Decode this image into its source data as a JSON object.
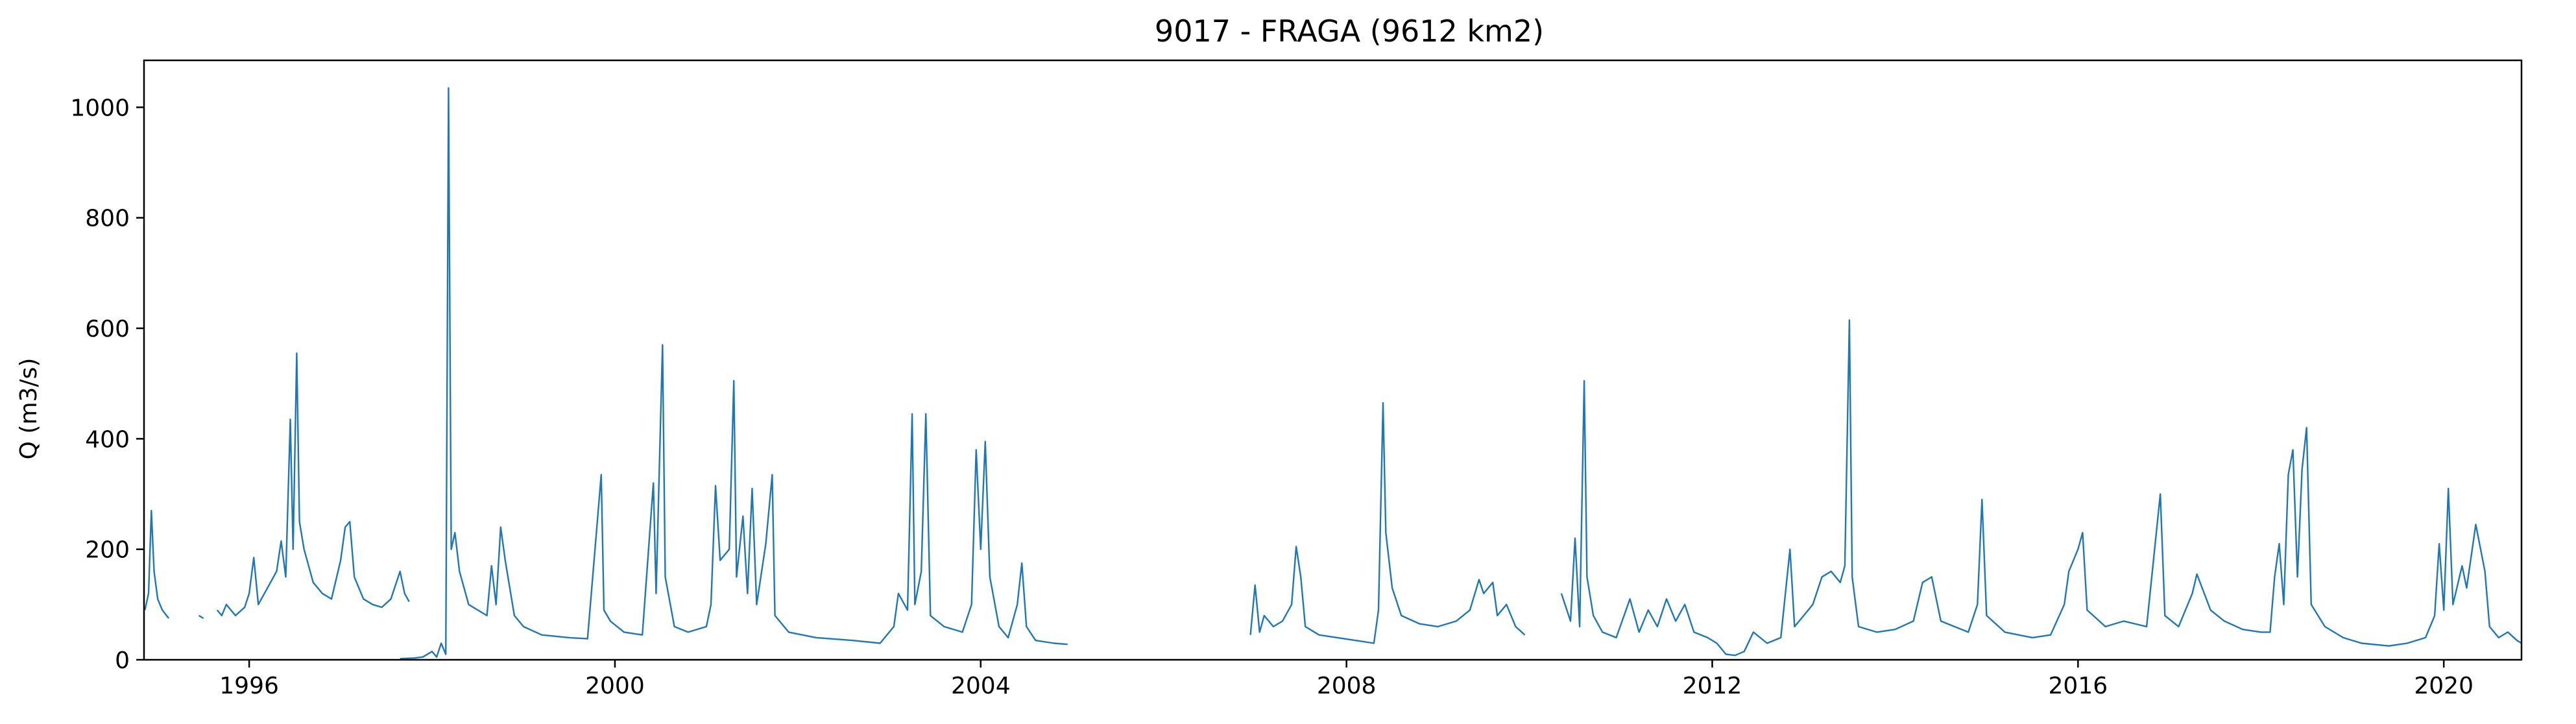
{
  "chart_data": {
    "type": "line",
    "title": "9017 - FRAGA (9612 km2)",
    "xlabel": "",
    "ylabel": "Q (m3/s)",
    "xlim": [
      1994.85,
      2020.85
    ],
    "ylim": [
      0,
      1085
    ],
    "x_ticks": [
      1996,
      2000,
      2004,
      2008,
      2012,
      2016,
      2020
    ],
    "x_tick_labels": [
      "1996",
      "2000",
      "2004",
      "2008",
      "2012",
      "2016",
      "2020"
    ],
    "y_ticks": [
      0,
      200,
      400,
      600,
      800,
      1000
    ],
    "y_tick_labels": [
      "0",
      "200",
      "400",
      "600",
      "800",
      "1000"
    ],
    "grid": false,
    "legend": "none",
    "colors": {
      "series": "#1f77b4",
      "axes": "#000000"
    },
    "series": [
      {
        "segments": [
          [
            [
              1994.86,
              90
            ],
            [
              1994.9,
              120
            ],
            [
              1994.93,
              270
            ],
            [
              1994.96,
              160
            ],
            [
              1995.0,
              110
            ],
            [
              1995.05,
              90
            ],
            [
              1995.12,
              75
            ]
          ],
          [
            [
              1995.45,
              80
            ],
            [
              1995.5,
              75
            ]
          ],
          [
            [
              1995.65,
              90
            ],
            [
              1995.7,
              80
            ],
            [
              1995.75,
              100
            ],
            [
              1995.85,
              80
            ],
            [
              1995.95,
              95
            ],
            [
              1996.0,
              120
            ],
            [
              1996.05,
              185
            ],
            [
              1996.1,
              100
            ],
            [
              1996.2,
              130
            ],
            [
              1996.3,
              160
            ],
            [
              1996.35,
              215
            ],
            [
              1996.4,
              150
            ],
            [
              1996.45,
              435
            ],
            [
              1996.48,
              200
            ],
            [
              1996.52,
              555
            ],
            [
              1996.55,
              250
            ],
            [
              1996.6,
              200
            ],
            [
              1996.7,
              140
            ],
            [
              1996.8,
              120
            ],
            [
              1996.9,
              110
            ],
            [
              1997.0,
              180
            ],
            [
              1997.05,
              240
            ],
            [
              1997.1,
              250
            ],
            [
              1997.15,
              150
            ],
            [
              1997.25,
              110
            ],
            [
              1997.35,
              100
            ],
            [
              1997.45,
              95
            ],
            [
              1997.55,
              110
            ],
            [
              1997.65,
              160
            ],
            [
              1997.7,
              120
            ],
            [
              1997.75,
              105
            ]
          ],
          [
            [
              1997.65,
              2
            ],
            [
              1997.8,
              3
            ],
            [
              1997.9,
              5
            ],
            [
              1998.0,
              15
            ],
            [
              1998.05,
              5
            ],
            [
              1998.1,
              30
            ],
            [
              1998.15,
              10
            ],
            [
              1998.18,
              1035
            ],
            [
              1998.21,
              200
            ],
            [
              1998.25,
              230
            ],
            [
              1998.3,
              160
            ],
            [
              1998.35,
              130
            ],
            [
              1998.4,
              100
            ],
            [
              1998.5,
              90
            ],
            [
              1998.6,
              80
            ],
            [
              1998.65,
              170
            ],
            [
              1998.7,
              100
            ],
            [
              1998.75,
              240
            ],
            [
              1998.8,
              180
            ],
            [
              1998.9,
              80
            ],
            [
              1999.0,
              60
            ],
            [
              1999.2,
              45
            ],
            [
              1999.5,
              40
            ],
            [
              1999.7,
              38
            ],
            [
              1999.85,
              335
            ],
            [
              1999.88,
              90
            ],
            [
              1999.95,
              70
            ],
            [
              2000.1,
              50
            ],
            [
              2000.3,
              45
            ],
            [
              2000.42,
              320
            ],
            [
              2000.45,
              120
            ],
            [
              2000.52,
              570
            ],
            [
              2000.55,
              150
            ],
            [
              2000.65,
              60
            ],
            [
              2000.8,
              50
            ],
            [
              2001.0,
              60
            ],
            [
              2001.05,
              100
            ],
            [
              2001.1,
              315
            ],
            [
              2001.15,
              180
            ],
            [
              2001.25,
              200
            ],
            [
              2001.3,
              505
            ],
            [
              2001.33,
              150
            ],
            [
              2001.4,
              260
            ],
            [
              2001.45,
              120
            ],
            [
              2001.5,
              310
            ],
            [
              2001.55,
              100
            ],
            [
              2001.65,
              210
            ],
            [
              2001.72,
              335
            ],
            [
              2001.75,
              80
            ],
            [
              2001.9,
              50
            ],
            [
              2002.2,
              40
            ],
            [
              2002.6,
              35
            ],
            [
              2002.9,
              30
            ],
            [
              2003.05,
              60
            ],
            [
              2003.1,
              120
            ],
            [
              2003.2,
              90
            ],
            [
              2003.25,
              445
            ],
            [
              2003.28,
              100
            ],
            [
              2003.35,
              160
            ],
            [
              2003.4,
              445
            ],
            [
              2003.45,
              80
            ],
            [
              2003.6,
              60
            ],
            [
              2003.8,
              50
            ],
            [
              2003.9,
              100
            ],
            [
              2003.95,
              380
            ],
            [
              2004.0,
              200
            ],
            [
              2004.05,
              395
            ],
            [
              2004.1,
              150
            ],
            [
              2004.2,
              60
            ],
            [
              2004.3,
              40
            ],
            [
              2004.4,
              100
            ],
            [
              2004.45,
              175
            ],
            [
              2004.5,
              60
            ],
            [
              2004.6,
              35
            ],
            [
              2004.8,
              30
            ],
            [
              2004.95,
              28
            ]
          ],
          [
            [
              2006.95,
              45
            ],
            [
              2007.0,
              135
            ],
            [
              2007.05,
              50
            ],
            [
              2007.1,
              80
            ],
            [
              2007.2,
              60
            ],
            [
              2007.3,
              70
            ],
            [
              2007.4,
              100
            ],
            [
              2007.45,
              205
            ],
            [
              2007.5,
              150
            ],
            [
              2007.55,
              60
            ],
            [
              2007.7,
              45
            ],
            [
              2007.9,
              40
            ],
            [
              2008.1,
              35
            ],
            [
              2008.3,
              30
            ],
            [
              2008.35,
              90
            ],
            [
              2008.4,
              465
            ],
            [
              2008.43,
              230
            ],
            [
              2008.5,
              130
            ],
            [
              2008.6,
              80
            ],
            [
              2008.8,
              65
            ],
            [
              2009.0,
              60
            ],
            [
              2009.2,
              70
            ],
            [
              2009.35,
              90
            ],
            [
              2009.45,
              145
            ],
            [
              2009.5,
              120
            ],
            [
              2009.6,
              140
            ],
            [
              2009.65,
              80
            ],
            [
              2009.75,
              100
            ],
            [
              2009.85,
              60
            ],
            [
              2009.95,
              45
            ]
          ],
          [
            [
              2010.35,
              120
            ],
            [
              2010.45,
              70
            ],
            [
              2010.5,
              220
            ],
            [
              2010.55,
              60
            ],
            [
              2010.6,
              505
            ],
            [
              2010.63,
              150
            ],
            [
              2010.7,
              80
            ],
            [
              2010.8,
              50
            ],
            [
              2010.95,
              40
            ],
            [
              2011.1,
              110
            ],
            [
              2011.2,
              50
            ],
            [
              2011.3,
              90
            ],
            [
              2011.4,
              60
            ],
            [
              2011.5,
              110
            ],
            [
              2011.6,
              70
            ],
            [
              2011.7,
              100
            ],
            [
              2011.8,
              50
            ],
            [
              2011.95,
              40
            ],
            [
              2012.05,
              30
            ],
            [
              2012.15,
              10
            ],
            [
              2012.25,
              8
            ],
            [
              2012.35,
              15
            ],
            [
              2012.45,
              50
            ],
            [
              2012.6,
              30
            ],
            [
              2012.75,
              40
            ],
            [
              2012.85,
              200
            ],
            [
              2012.9,
              60
            ],
            [
              2013.0,
              80
            ],
            [
              2013.1,
              100
            ],
            [
              2013.2,
              150
            ],
            [
              2013.3,
              160
            ],
            [
              2013.4,
              140
            ],
            [
              2013.45,
              170
            ],
            [
              2013.5,
              615
            ],
            [
              2013.53,
              150
            ],
            [
              2013.6,
              60
            ],
            [
              2013.8,
              50
            ],
            [
              2014.0,
              55
            ],
            [
              2014.2,
              70
            ],
            [
              2014.3,
              140
            ],
            [
              2014.4,
              150
            ],
            [
              2014.5,
              70
            ],
            [
              2014.65,
              60
            ],
            [
              2014.8,
              50
            ],
            [
              2014.9,
              100
            ],
            [
              2014.95,
              290
            ],
            [
              2015.0,
              80
            ],
            [
              2015.2,
              50
            ],
            [
              2015.5,
              40
            ],
            [
              2015.7,
              45
            ],
            [
              2015.85,
              100
            ],
            [
              2015.9,
              160
            ],
            [
              2016.0,
              200
            ],
            [
              2016.05,
              230
            ],
            [
              2016.1,
              90
            ],
            [
              2016.3,
              60
            ],
            [
              2016.5,
              70
            ],
            [
              2016.75,
              60
            ],
            [
              2016.9,
              300
            ],
            [
              2016.95,
              80
            ],
            [
              2017.1,
              60
            ],
            [
              2017.25,
              120
            ],
            [
              2017.3,
              155
            ],
            [
              2017.45,
              90
            ],
            [
              2017.6,
              70
            ],
            [
              2017.8,
              55
            ],
            [
              2018.0,
              50
            ],
            [
              2018.1,
              50
            ],
            [
              2018.15,
              150
            ],
            [
              2018.2,
              210
            ],
            [
              2018.25,
              100
            ],
            [
              2018.3,
              335
            ],
            [
              2018.35,
              380
            ],
            [
              2018.4,
              150
            ],
            [
              2018.45,
              345
            ],
            [
              2018.5,
              420
            ],
            [
              2018.55,
              100
            ],
            [
              2018.7,
              60
            ],
            [
              2018.9,
              40
            ],
            [
              2019.1,
              30
            ],
            [
              2019.4,
              25
            ],
            [
              2019.6,
              30
            ],
            [
              2019.8,
              40
            ],
            [
              2019.9,
              80
            ],
            [
              2019.95,
              210
            ],
            [
              2020.0,
              90
            ],
            [
              2020.05,
              310
            ],
            [
              2020.1,
              100
            ],
            [
              2020.2,
              170
            ],
            [
              2020.25,
              130
            ],
            [
              2020.35,
              245
            ],
            [
              2020.45,
              160
            ],
            [
              2020.5,
              60
            ],
            [
              2020.6,
              40
            ],
            [
              2020.7,
              50
            ],
            [
              2020.8,
              35
            ],
            [
              2020.85,
              30
            ]
          ]
        ]
      }
    ]
  }
}
